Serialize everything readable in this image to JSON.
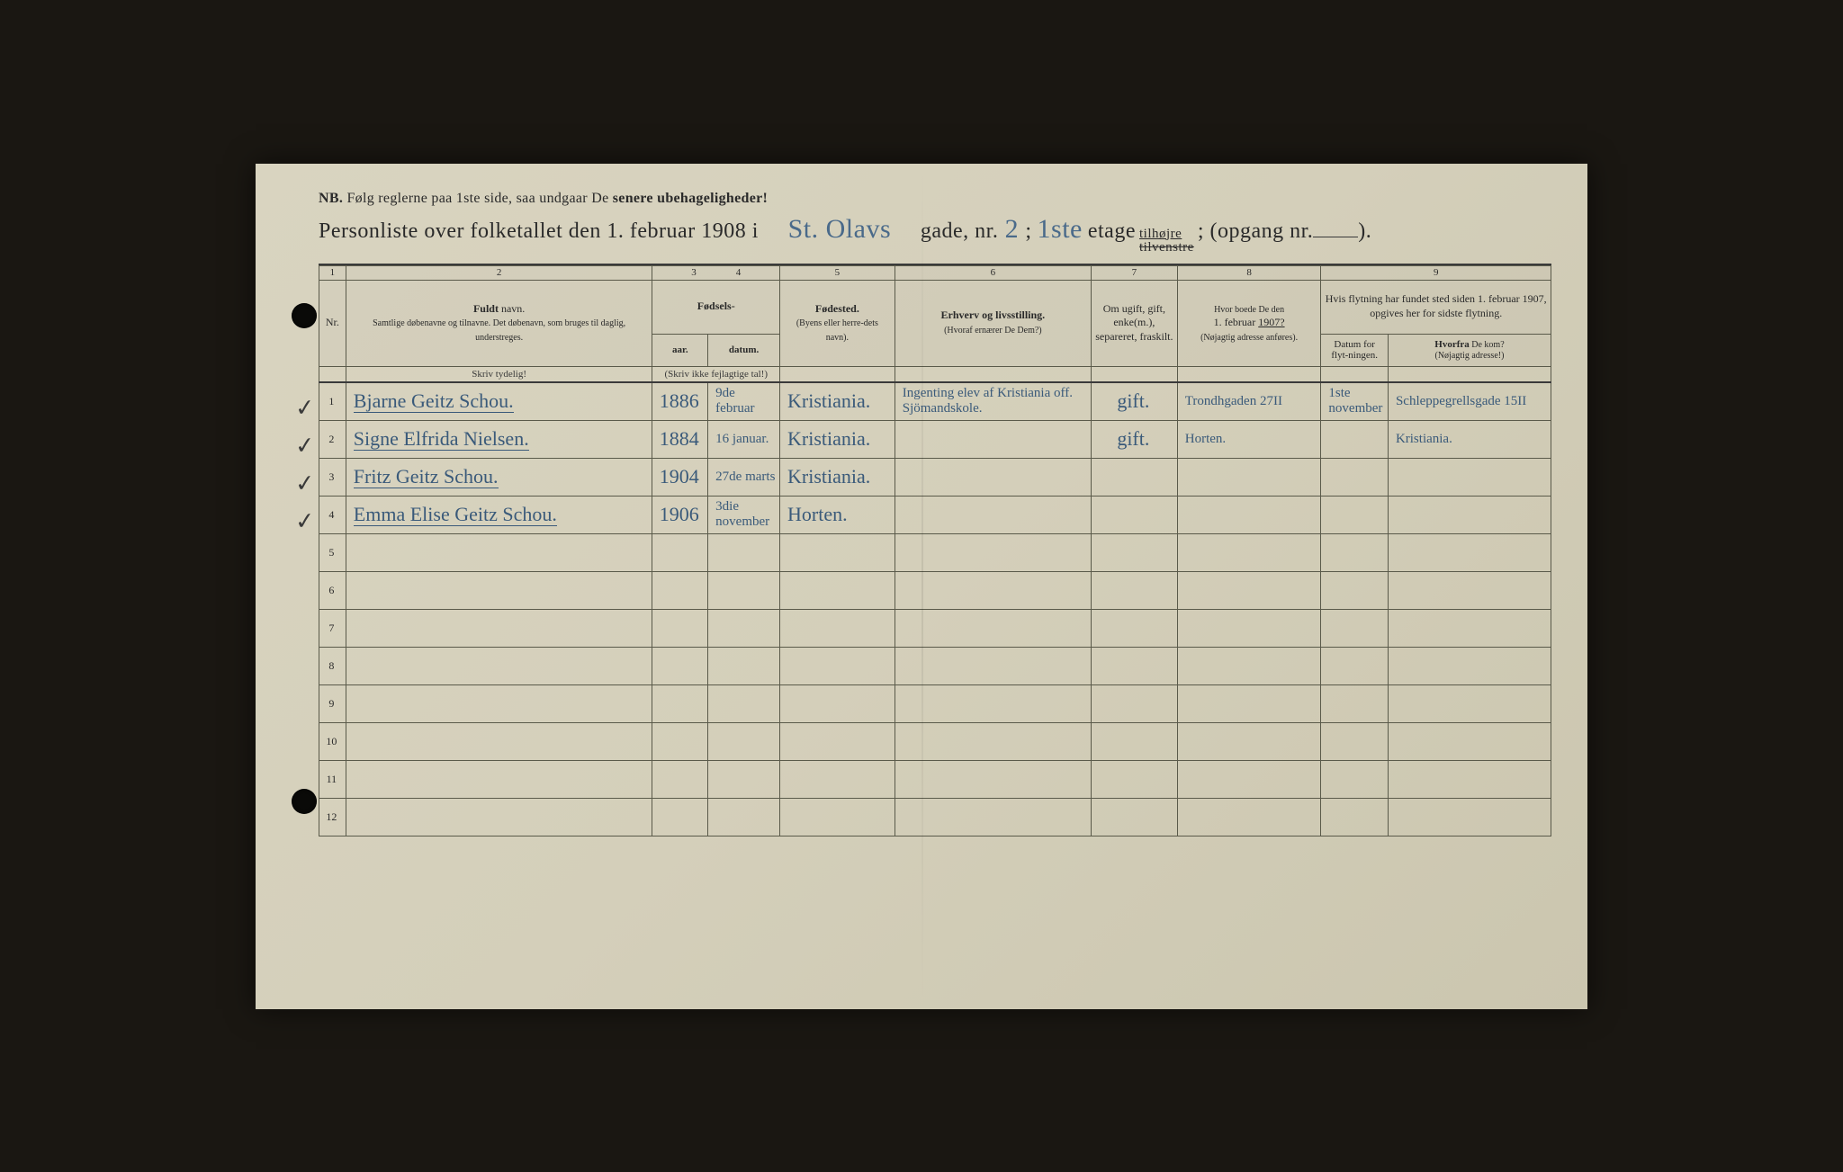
{
  "nb": {
    "prefix": "NB.",
    "text_a": "Følg reglerne paa 1ste side, saa undgaar De ",
    "text_b": "senere ubehageligheder!"
  },
  "title": {
    "prefix": "Personliste over folketallet den 1. februar 1908 i",
    "street": "St. Olavs",
    "gade_label": "gade, nr.",
    "nr": "2",
    "semicolon": ";",
    "etage": "1ste",
    "etage_label": "etage",
    "side_top": "tilhøjre",
    "side_bottom": "tilvenstre",
    "opgang_label": "; (opgang nr.",
    "opgang": "",
    "close": ")."
  },
  "colnums": [
    "1",
    "2",
    "3",
    "4",
    "5",
    "6",
    "7",
    "8",
    "9"
  ],
  "headers": {
    "nr": "Nr.",
    "name_strong": "Fuldt",
    "name_rest": " navn.",
    "name_sub": "Samtlige døbenavne og tilnavne.  Det døbenavn, som bruges til daglig, understreges.",
    "fodsels": "Fødsels-",
    "aar": "aar.",
    "datum": "datum.",
    "aar_sub": "(Skriv ikke fejlagtige tal!)",
    "fodested": "Fødested.",
    "fodested_sub": "(Byens eller herre-dets navn).",
    "erhverv": "Erhverv og livsstilling.",
    "erhverv_sub": "(Hvoraf ernærer De Dem?)",
    "ugift": "Om ugift, gift, enke(m.), separeret, fraskilt.",
    "addr1907_a": "Hvor boede De den",
    "addr1907_b": "1. februar ",
    "addr1907_year": "1907?",
    "addr1907_sub": "(Nøjagtig adresse anføres).",
    "move_top": "Hvis flytning har fundet sted siden 1. februar 1907, opgives her for sidste flytning.",
    "move_date": "Datum for flyt-ningen.",
    "move_from_a": "Hvorfra",
    "move_from_b": " De kom?",
    "move_from_sub": "(Nøjagtig adresse!)"
  },
  "label_skriv": "Skriv tydelig!",
  "rows": [
    {
      "nr": "1",
      "name": "Bjarne Geitz Schou.",
      "year": "1886",
      "date": "9de februar",
      "birthplace": "Kristiania.",
      "occupation": "Ingenting  elev af Kristiania off. Sjömandskole.",
      "status": "gift.",
      "addr1907": "Trondhgaden 27II",
      "movedate": "1ste november",
      "from": "Schleppegrellsgade 15II"
    },
    {
      "nr": "2",
      "name": "Signe Elfrida Nielsen.",
      "year": "1884",
      "date": "16 januar.",
      "birthplace": "Kristiania.",
      "occupation": "",
      "status": "gift.",
      "addr1907": "Horten.",
      "movedate": "",
      "from": "Kristiania."
    },
    {
      "nr": "3",
      "name": "Fritz Geitz Schou.",
      "year": "1904",
      "date": "27de marts",
      "birthplace": "Kristiania.",
      "occupation": "",
      "status": "",
      "addr1907": "",
      "movedate": "",
      "from": ""
    },
    {
      "nr": "4",
      "name": "Emma Elise Geitz Schou.",
      "year": "1906",
      "date": "3die november",
      "birthplace": "Horten.",
      "occupation": "",
      "status": "",
      "addr1907": "",
      "movedate": "",
      "from": ""
    }
  ],
  "empty_nrs": [
    "5",
    "6",
    "7",
    "8",
    "9",
    "10",
    "11",
    "12"
  ],
  "colors": {
    "paper": "#d4cfba",
    "ink_print": "#2a2a2a",
    "ink_handwritten": "#3a5a7a",
    "rule": "#5a5a4a"
  }
}
